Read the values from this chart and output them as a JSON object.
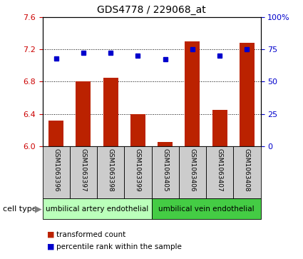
{
  "title": "GDS4778 / 229068_at",
  "samples": [
    "GSM1063396",
    "GSM1063397",
    "GSM1063398",
    "GSM1063399",
    "GSM1063405",
    "GSM1063406",
    "GSM1063407",
    "GSM1063408"
  ],
  "bar_values": [
    6.32,
    6.8,
    6.85,
    6.4,
    6.05,
    7.3,
    6.45,
    7.28
  ],
  "dot_values": [
    68,
    72,
    72,
    70,
    67,
    75,
    70,
    75
  ],
  "ylim_left": [
    6.0,
    7.6
  ],
  "ylim_right": [
    0,
    100
  ],
  "yticks_left": [
    6.0,
    6.4,
    6.8,
    7.2,
    7.6
  ],
  "yticks_right": [
    0,
    25,
    50,
    75,
    100
  ],
  "bar_color": "#bb2200",
  "dot_color": "#0000cc",
  "cell_type_groups": [
    {
      "label": "umbilical artery endothelial",
      "indices": [
        0,
        1,
        2,
        3
      ],
      "color": "#bbffbb"
    },
    {
      "label": "umbilical vein endothelial",
      "indices": [
        4,
        5,
        6,
        7
      ],
      "color": "#44cc44"
    }
  ],
  "tick_color_left": "#cc0000",
  "tick_color_right": "#0000cc",
  "background_xtick": "#cccccc",
  "legend_items": [
    {
      "label": "transformed count",
      "color": "#bb2200"
    },
    {
      "label": "percentile rank within the sample",
      "color": "#0000cc"
    }
  ]
}
